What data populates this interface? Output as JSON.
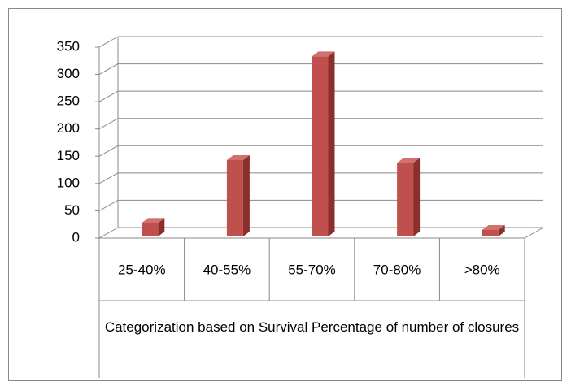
{
  "chart_data": {
    "type": "bar3d",
    "x_label": "Categorization based on Survival Percentage of number of closures",
    "categories": [
      "25-40%",
      "40-55%",
      "55-70%",
      "70-80%",
      ">80%"
    ],
    "values": [
      25,
      140,
      330,
      135,
      12
    ],
    "color": "#c0504d",
    "ylim": [
      0,
      350
    ],
    "yticks": [
      0,
      50,
      100,
      150,
      200,
      250,
      300,
      350
    ],
    "grid": true
  }
}
